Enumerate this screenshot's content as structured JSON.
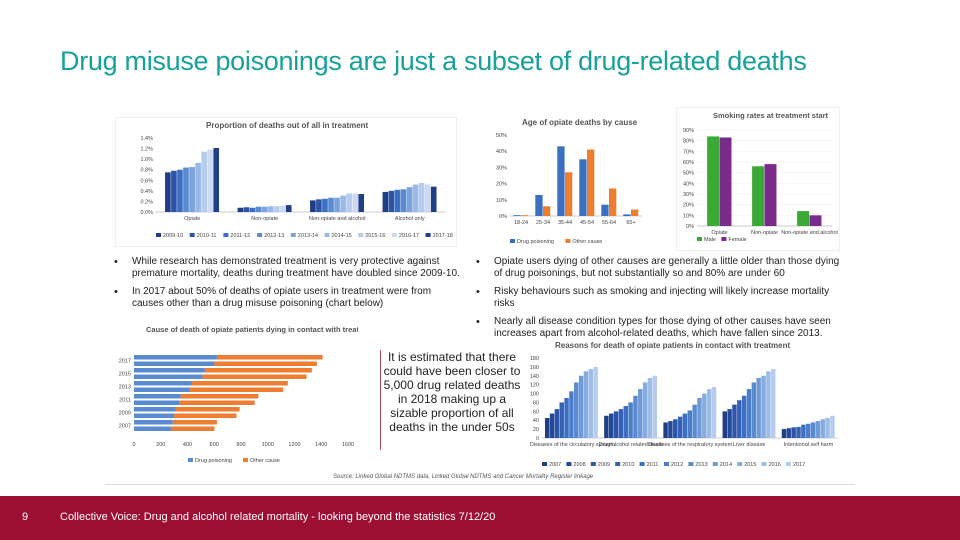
{
  "slide": {
    "title": "Drug misuse poisonings are just a subset of drug-related deaths",
    "bullets_left": [
      "While research has demonstrated treatment is very protective against premature mortality, deaths during treatment have doubled since 2009-10.",
      "In 2017 about 50% of deaths of opiate users in treatment were from causes other than a drug misuse poisoning (chart below)"
    ],
    "bullets_right": [
      "Opiate users dying of other causes are generally a little older than those dying of drug poisonings, but not substantially so and 80% are under 60",
      "Risky behaviours such as smoking and injecting will likely increase mortality risks",
      "Nearly all disease condition types for those dying of other causes have seen increases apart from alcohol-related deaths, which have fallen since 2013."
    ],
    "callout": "It is estimated that there could have been closer to 5,000 drug related deaths in 2018 making up a sizable proportion of all deaths in the under 50s",
    "source": "Source: Linked Global NDTMS data, Linked Global NDTMS and Cancer Mortality Register linkage",
    "footer_page": "9",
    "footer_text": "Collective Voice: Drug and alcohol related mortality - looking beyond the statistics 7/12/20"
  },
  "colors": {
    "title": "#16a19a",
    "footer": "#9b0f34",
    "blue_palette": [
      "#1f3e86",
      "#2c55a8",
      "#3b6fc2",
      "#5a8ad0",
      "#7aa3dc",
      "#9ab9e6",
      "#b6ccef",
      "#cdd9f3"
    ],
    "orange": "#ed7d31",
    "green": "#3aaa35",
    "purple": "#7a2a8a"
  },
  "chart_data": [
    {
      "type": "bar",
      "title": "Proportion of deaths out of all in treatment",
      "categories": [
        "Opiate",
        "Non-opiate",
        "Non-opiate and alcohol",
        "Alcohol only"
      ],
      "series": [
        {
          "name": "2009-10",
          "values": [
            0.75,
            0.08,
            0.22,
            0.38
          ]
        },
        {
          "name": "2010-11",
          "values": [
            0.78,
            0.09,
            0.24,
            0.4
          ]
        },
        {
          "name": "2011-12",
          "values": [
            0.8,
            0.08,
            0.25,
            0.42
          ]
        },
        {
          "name": "2012-13",
          "values": [
            0.84,
            0.1,
            0.27,
            0.43
          ]
        },
        {
          "name": "2013-14",
          "values": [
            0.85,
            0.1,
            0.27,
            0.47
          ]
        },
        {
          "name": "2014-15",
          "values": [
            0.93,
            0.11,
            0.31,
            0.52
          ]
        },
        {
          "name": "2015-16",
          "values": [
            1.14,
            0.11,
            0.35,
            0.55
          ]
        },
        {
          "name": "2016-17",
          "values": [
            1.18,
            0.12,
            0.35,
            0.52
          ]
        },
        {
          "name": "2017-18",
          "values": [
            1.21,
            0.13,
            0.34,
            0.48
          ]
        }
      ],
      "ylim": [
        0,
        1.4
      ],
      "yticks": [
        "0.0%",
        "0.2%",
        "0.4%",
        "0.6%",
        "0.8%",
        "1.0%",
        "1.2%",
        "1.4%"
      ],
      "legend": "bottom"
    },
    {
      "type": "bar",
      "title": "Age of opiate deaths by cause",
      "categories": [
        "18-24",
        "25-34",
        "35-44",
        "45-54",
        "55-64",
        "65+"
      ],
      "series": [
        {
          "name": "Drug poisoning",
          "values": [
            0.5,
            13,
            43,
            35,
            7,
            1
          ]
        },
        {
          "name": "Other cause",
          "values": [
            0.5,
            6,
            27,
            41,
            17,
            4
          ]
        }
      ],
      "ylim": [
        0,
        50
      ],
      "yticks": [
        "0%",
        "10%",
        "20%",
        "30%",
        "40%",
        "50%"
      ],
      "legend": "bottom"
    },
    {
      "type": "bar",
      "title": "Smoking rates at treatment start",
      "categories": [
        "Opiate",
        "Non-opiate",
        "Non-opiate and alcohol"
      ],
      "series": [
        {
          "name": "Male",
          "values": [
            84,
            56,
            14
          ]
        },
        {
          "name": "Female",
          "values": [
            83,
            58,
            10
          ]
        }
      ],
      "ylim": [
        0,
        90
      ],
      "yticks": [
        "0%",
        "10%",
        "20%",
        "30%",
        "40%",
        "50%",
        "60%",
        "70%",
        "80%",
        "90%"
      ],
      "legend": "bottom"
    },
    {
      "type": "bar",
      "title": "Cause of death of opiate patients dying in contact with treatment",
      "orientation": "horizontal",
      "categories": [
        "2017",
        "2015",
        "2013",
        "2011",
        "2009",
        "2007"
      ],
      "series": [
        {
          "name": "Drug poisoning",
          "values": [
            620,
            530,
            430,
            350,
            310,
            290
          ]
        },
        {
          "name": "Other cause",
          "values": [
            1410,
            1330,
            1150,
            930,
            790,
            620
          ]
        }
      ],
      "xlim": [
        0,
        1600
      ],
      "xticks": [
        "0",
        "200",
        "400",
        "600",
        "800",
        "1000",
        "1200",
        "1400",
        "1600"
      ],
      "legend": "bottom"
    },
    {
      "type": "bar",
      "title": "Reasons for death of opiate patients in contact with treatment",
      "categories": [
        "Diseases of the circulatory system",
        "Drug/alcohol related death",
        "Diseases of the respiratory system",
        "Liver disease",
        "Intentional self harm"
      ],
      "series": [
        {
          "name": "2007",
          "values": [
            45,
            50,
            35,
            60,
            20
          ]
        },
        {
          "name": "2008",
          "values": [
            55,
            55,
            38,
            65,
            22
          ]
        },
        {
          "name": "2009",
          "values": [
            65,
            60,
            42,
            75,
            24
          ]
        },
        {
          "name": "2010",
          "values": [
            80,
            65,
            48,
            85,
            25
          ]
        },
        {
          "name": "2011",
          "values": [
            90,
            72,
            55,
            95,
            30
          ]
        },
        {
          "name": "2012",
          "values": [
            105,
            80,
            62,
            110,
            32
          ]
        },
        {
          "name": "2013",
          "values": [
            125,
            95,
            75,
            125,
            35
          ]
        },
        {
          "name": "2014",
          "values": [
            140,
            110,
            90,
            135,
            38
          ]
        },
        {
          "name": "2015",
          "values": [
            150,
            125,
            100,
            140,
            42
          ]
        },
        {
          "name": "2016",
          "values": [
            155,
            135,
            110,
            150,
            45
          ]
        },
        {
          "name": "2017",
          "values": [
            160,
            140,
            115,
            155,
            50
          ]
        }
      ],
      "ylim": [
        0,
        180
      ],
      "yticks": [
        "0",
        "20",
        "40",
        "60",
        "80",
        "100",
        "120",
        "140",
        "160",
        "180"
      ],
      "legend": "bottom"
    }
  ]
}
